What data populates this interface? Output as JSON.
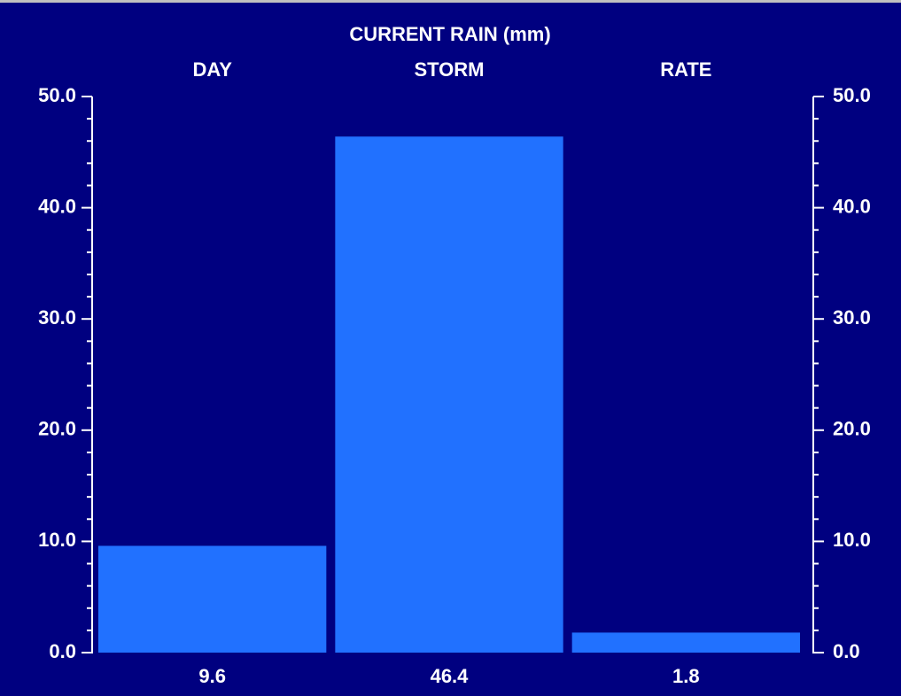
{
  "chart_data": {
    "type": "bar",
    "title": "CURRENT RAIN  (mm)",
    "categories": [
      "DAY",
      "STORM",
      "RATE"
    ],
    "values": [
      9.6,
      46.4,
      1.8
    ],
    "color": "#2171ff",
    "ylim": [
      0,
      50
    ],
    "yticks": [
      {
        "value": 0,
        "label": "0.0"
      },
      {
        "value": 10,
        "label": "10.0"
      },
      {
        "value": 20,
        "label": "20.0"
      },
      {
        "value": 30,
        "label": "30.0"
      },
      {
        "value": 40,
        "label": "40.0"
      },
      {
        "value": 50,
        "label": "50.0"
      }
    ],
    "y_minor_ticks": [
      2,
      4,
      6,
      8,
      12,
      14,
      16,
      18,
      22,
      24,
      26,
      28,
      32,
      34,
      36,
      38,
      42,
      44,
      46,
      48
    ],
    "y2lim": [
      0,
      50
    ],
    "y2ticks": [
      {
        "value": 0,
        "label": "0.0"
      },
      {
        "value": 10,
        "label": "10.0"
      },
      {
        "value": 20,
        "label": "20.0"
      },
      {
        "value": 30,
        "label": "30.0"
      },
      {
        "value": 40,
        "label": "40.0"
      },
      {
        "value": 50,
        "label": "50.0"
      }
    ],
    "grid": false
  }
}
